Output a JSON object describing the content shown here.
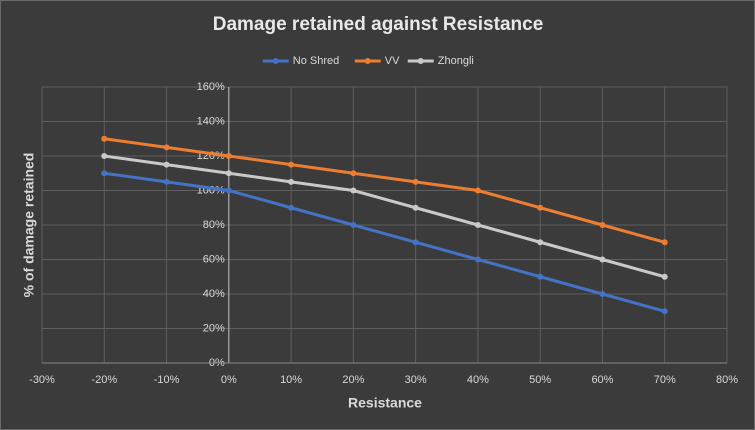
{
  "chart_data": {
    "type": "line",
    "title": "Damage retained against Resistance",
    "x_label": "Resistance",
    "y_label": "% of damage retained",
    "x": [
      -20,
      -10,
      0,
      10,
      20,
      30,
      40,
      50,
      60,
      70
    ],
    "series": [
      {
        "name": "No Shred",
        "color": "#4472c4",
        "values": [
          110,
          105,
          100,
          90,
          80,
          70,
          60,
          50,
          40,
          30
        ]
      },
      {
        "name": "VV",
        "color": "#ed7d31",
        "values": [
          130,
          125,
          120,
          115,
          110,
          105,
          100,
          90,
          80,
          70
        ]
      },
      {
        "name": "Zhongli",
        "color": "#c9c9c9",
        "values": [
          120,
          115,
          110,
          105,
          100,
          90,
          80,
          70,
          60,
          50
        ]
      }
    ],
    "xlim": [
      -30,
      80
    ],
    "xticks": [
      {
        "value": -30,
        "label": "-30%"
      },
      {
        "value": -20,
        "label": "-20%"
      },
      {
        "value": -10,
        "label": "-10%"
      },
      {
        "value": 0,
        "label": "0%"
      },
      {
        "value": 10,
        "label": "10%"
      },
      {
        "value": 20,
        "label": "20%"
      },
      {
        "value": 30,
        "label": "30%"
      },
      {
        "value": 40,
        "label": "40%"
      },
      {
        "value": 50,
        "label": "50%"
      },
      {
        "value": 60,
        "label": "60%"
      },
      {
        "value": 70,
        "label": "70%"
      },
      {
        "value": 80,
        "label": "80%"
      }
    ],
    "ylim": [
      0,
      160
    ],
    "yticks": [
      {
        "value": 0,
        "label": "0%"
      },
      {
        "value": 20,
        "label": "20%"
      },
      {
        "value": 40,
        "label": "40%"
      },
      {
        "value": 60,
        "label": "60%"
      },
      {
        "value": 80,
        "label": "80%"
      },
      {
        "value": 100,
        "label": "100%"
      },
      {
        "value": 120,
        "label": "120%"
      },
      {
        "value": 140,
        "label": "140%"
      },
      {
        "value": 160,
        "label": "160%"
      }
    ],
    "grid": true,
    "legend": "top"
  }
}
